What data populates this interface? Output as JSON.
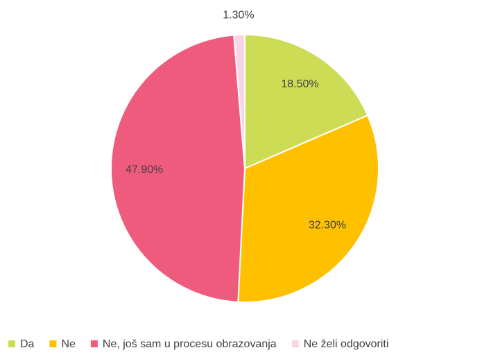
{
  "chart_data": {
    "type": "pie",
    "categories": [
      "Da",
      "Ne",
      "Ne, još sam u procesu obrazovanja",
      "Ne želi odgovoriti"
    ],
    "values": [
      18.5,
      32.3,
      47.9,
      1.3
    ],
    "value_labels": [
      "18.50%",
      "32.30%",
      "47.90%",
      "1.30%"
    ],
    "colors": [
      "#cddc55",
      "#ffc000",
      "#ee5b7d",
      "#fbd3e6"
    ],
    "legend": "bottom"
  }
}
